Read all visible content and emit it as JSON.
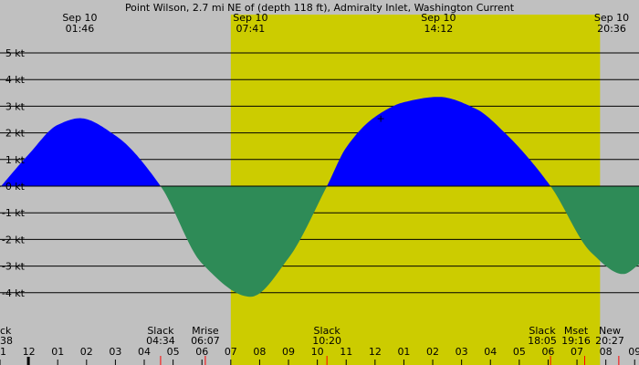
{
  "title": "Point Wilson, 2.7 mi NE of (depth 118 ft), Admiralty Inlet, Washington Current",
  "colors": {
    "background": "#c0c0c0",
    "daylight": "#cccc00",
    "flood": "#0000ff",
    "ebb": "#2e8b57",
    "gridline": "#000000",
    "tick_red": "#ff0000"
  },
  "chart_data": {
    "type": "area",
    "title": "Point Wilson, 2.7 mi NE of (depth 118 ft), Admiralty Inlet, Washington Current",
    "xlabel": "",
    "ylabel": "",
    "x_unit": "hours (local time, Sep 10)",
    "xlim": [
      -1.0,
      21.15
    ],
    "ylim": [
      -4.75,
      5.4
    ],
    "y_ticks": [
      5,
      4,
      3,
      2,
      1,
      0,
      -1,
      -2,
      -3,
      -4
    ],
    "y_tick_labels": [
      "5 kt",
      "4 kt",
      "3 kt",
      "2 kt",
      "1 kt",
      "0 kt",
      "-1 kt",
      "-2 kt",
      "-3 kt",
      "-4 kt"
    ],
    "grid": true,
    "daylight_span": [
      7.0,
      19.8
    ],
    "hour_ticks": [
      -1,
      0,
      1,
      2,
      3,
      4,
      5,
      6,
      7,
      8,
      9,
      10,
      11,
      12,
      13,
      14,
      15,
      16,
      17,
      18,
      19,
      20,
      21
    ],
    "hour_labels": [
      "11",
      "12",
      "01",
      "02",
      "03",
      "04",
      "05",
      "06",
      "07",
      "08",
      "09",
      "10",
      "11",
      "12",
      "01",
      "02",
      "03",
      "04",
      "05",
      "06",
      "07",
      "08",
      "09"
    ],
    "series": [
      {
        "x": [
          -1.2,
          0.0,
          1.0,
          1.767,
          3.0,
          4.567,
          6.0,
          7.683,
          9.0,
          10.333,
          11.0,
          12.0,
          13.0,
          14.2,
          15.5,
          16.5,
          18.083,
          19.5,
          20.6,
          21.2
        ],
        "y": [
          -0.3,
          1.2,
          2.3,
          2.55,
          1.9,
          0.0,
          -2.9,
          -4.15,
          -2.7,
          0.0,
          1.45,
          2.6,
          3.15,
          3.35,
          2.9,
          2.0,
          0.0,
          -2.5,
          -3.3,
          -2.9
        ]
      }
    ],
    "annotations": [
      {
        "label": "Sep 10",
        "time": "01:46",
        "at": 1.767,
        "kind": "max flood"
      },
      {
        "label": "Sep 10",
        "time": "07:41",
        "at": 7.683,
        "kind": "max ebb"
      },
      {
        "label": "Sep 10",
        "time": "14:12",
        "at": 14.2,
        "kind": "max flood"
      },
      {
        "label": "Sep 10",
        "time": "20:36",
        "at": 20.6,
        "kind": "max ebb"
      }
    ],
    "events": [
      {
        "label": "Slack",
        "time": "04:34",
        "at": 4.567
      },
      {
        "label": "Mrise",
        "time": "06:07",
        "at": 6.117
      },
      {
        "label": "Slack",
        "time": "10:20",
        "at": 10.333
      },
      {
        "label": "Slack",
        "time": "18:05",
        "at": 18.083
      },
      {
        "label": "Mset",
        "time": "19:16",
        "at": 19.267
      },
      {
        "label": "New",
        "time": "20:27",
        "at": 20.45
      }
    ],
    "edge_event": {
      "label": "ck",
      "time": "38"
    },
    "marker": {
      "symbol": "+",
      "at": 12.2,
      "value": 2.55
    }
  }
}
